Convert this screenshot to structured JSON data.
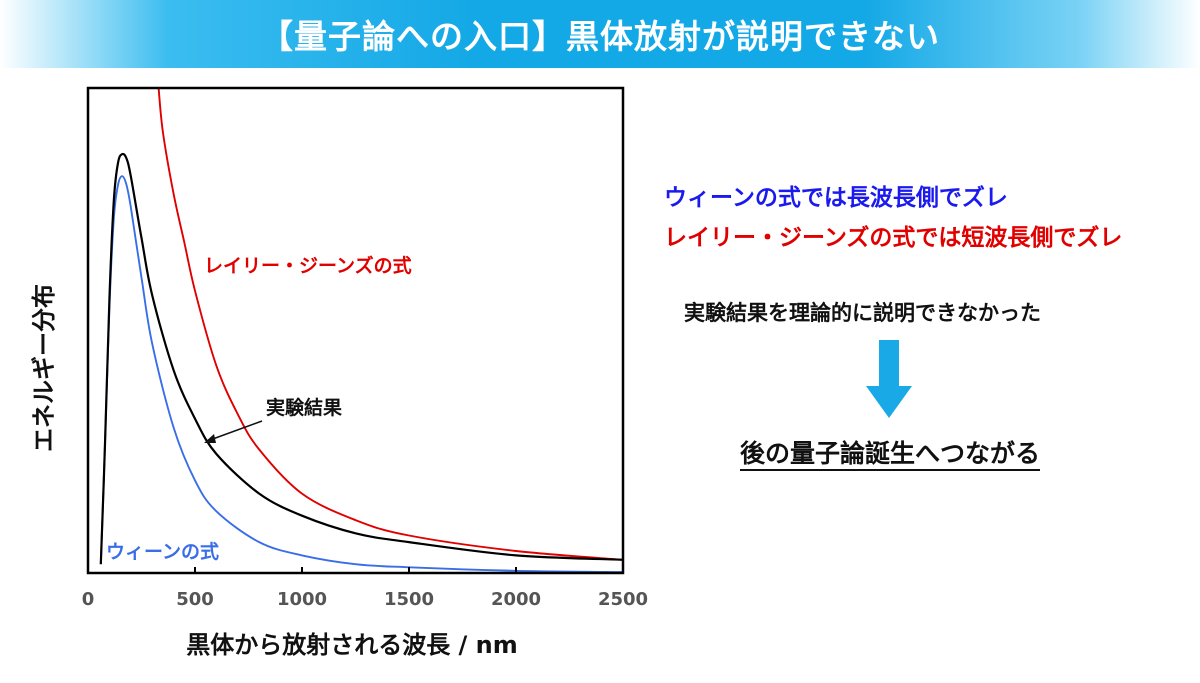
{
  "title": "【量子論への入口】黒体放射が説明できない",
  "colors": {
    "title_band": "#13a8e6",
    "wien": "#3a6ee8",
    "rayleigh_jeans": "#e00000",
    "experiment": "#000000",
    "note_blue": "#1a1aee",
    "note_red": "#e00000",
    "arrow": "#19a9e6"
  },
  "chart_data": {
    "type": "line",
    "xlabel": "黒体から放射される波長 / nm",
    "ylabel": "エネルギー分布",
    "xlim": [
      0,
      2500
    ],
    "ylim": [
      0,
      1.1
    ],
    "xticks": [
      "0",
      "500",
      "1000",
      "1500",
      "2000",
      "2500"
    ],
    "y_ticks_shown": false,
    "grid": false,
    "series": [
      {
        "name": "実験結果",
        "key": "experiment",
        "x": [
          60,
          80,
          100,
          120,
          140,
          160,
          180,
          200,
          250,
          300,
          400,
          500,
          600,
          800,
          1000,
          1250,
          1500,
          2000,
          2500
        ],
        "y": [
          0.02,
          0.3,
          0.62,
          0.84,
          0.93,
          0.95,
          0.94,
          0.9,
          0.76,
          0.63,
          0.46,
          0.35,
          0.27,
          0.18,
          0.13,
          0.09,
          0.07,
          0.04,
          0.03
        ]
      },
      {
        "name": "ウィーンの式",
        "key": "wien",
        "x": [
          60,
          80,
          100,
          120,
          140,
          160,
          180,
          200,
          250,
          300,
          400,
          500,
          600,
          800,
          1000,
          1250,
          1500,
          2000,
          2500
        ],
        "y": [
          0.02,
          0.3,
          0.6,
          0.8,
          0.88,
          0.9,
          0.88,
          0.83,
          0.67,
          0.52,
          0.33,
          0.21,
          0.14,
          0.07,
          0.04,
          0.02,
          0.013,
          0.005,
          0.002
        ]
      },
      {
        "name": "レイリー・ジーンズの式",
        "key": "rayleigh_jeans",
        "x": [
          330,
          350,
          400,
          450,
          500,
          600,
          700,
          800,
          1000,
          1250,
          1500,
          2000,
          2500
        ],
        "y": [
          1.1,
          1.0,
          0.86,
          0.75,
          0.64,
          0.47,
          0.36,
          0.28,
          0.18,
          0.12,
          0.085,
          0.05,
          0.03
        ]
      }
    ],
    "annotations": [
      {
        "text": "実験結果",
        "arrow_to": {
          "x": 520,
          "y": 0.3
        }
      }
    ]
  },
  "notes": {
    "wien_deviation": "ウィーンの式では長波長側でズレ",
    "rj_deviation": "レイリー・ジーンズの式では短波長側でズレ",
    "experiment_unexplained": "実験結果を理論的に説明できなかった",
    "conclusion": "後の量子論誕生へつながる"
  }
}
